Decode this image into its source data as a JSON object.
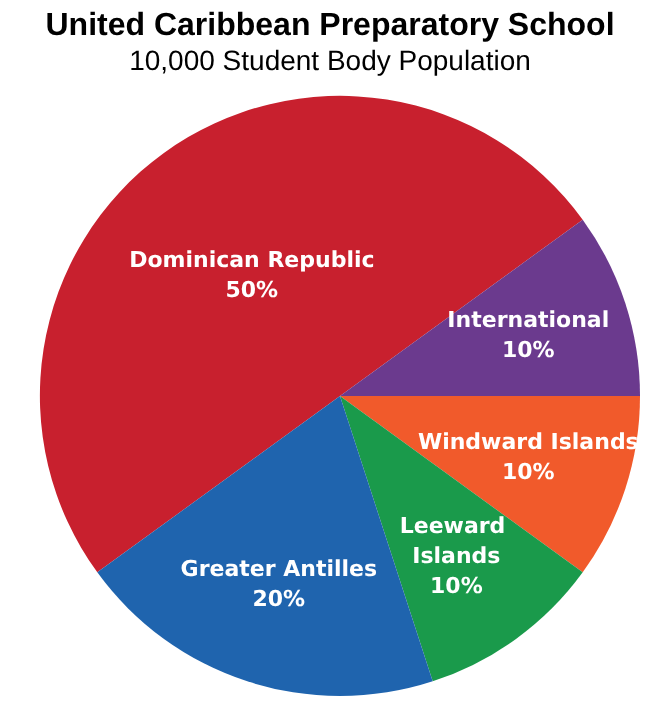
{
  "chart_data": {
    "type": "pie",
    "title": "United Caribbean Preparatory School",
    "subtitle": "10,000 Student Body Population",
    "categories": [
      "Dominican Republic",
      "International",
      "Windward Islands",
      "Leeward Islands",
      "Greater Antilles"
    ],
    "values": [
      50,
      10,
      10,
      10,
      20
    ],
    "colors": [
      "#c8202e",
      "#6b3a8e",
      "#f15a2b",
      "#1a9a4b",
      "#1f64ae"
    ],
    "value_labels": [
      "50%",
      "10%",
      "10%",
      "10%",
      "20%"
    ],
    "legend": false
  }
}
